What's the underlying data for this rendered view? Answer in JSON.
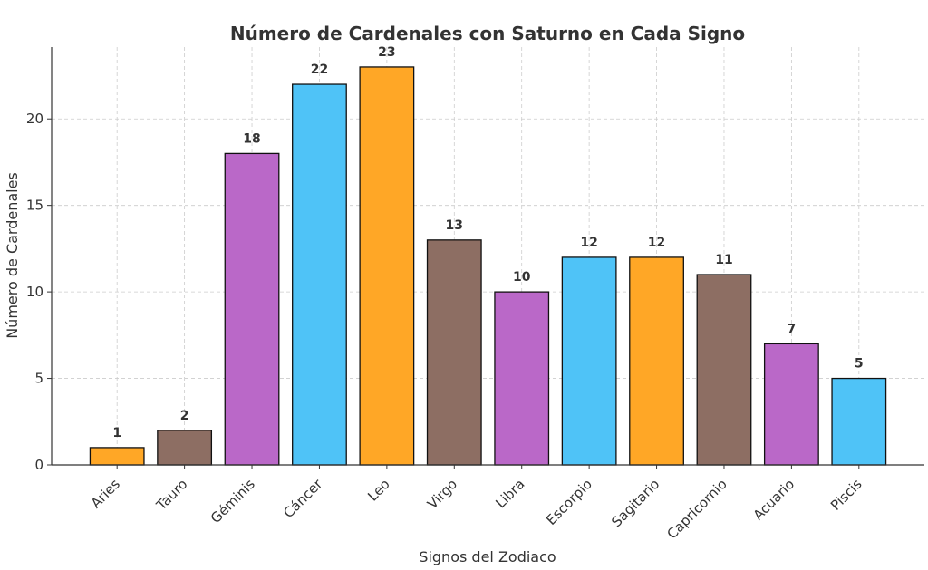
{
  "chart_data": {
    "type": "bar",
    "title": "Número de Cardenales con Saturno en Cada Signo",
    "x_label": "Signos del Zodiaco",
    "y_label": "Número de Cardenales",
    "categories": [
      "Aries",
      "Tauro",
      "Géminis",
      "Cáncer",
      "Leo",
      "Virgo",
      "Libra",
      "Escorpio",
      "Sagitario",
      "Capricornio",
      "Acuario",
      "Piscis"
    ],
    "values": [
      1,
      2,
      18,
      22,
      23,
      13,
      10,
      12,
      12,
      11,
      7,
      5
    ],
    "colors": [
      "#ffa726",
      "#8d6e63",
      "#ba68c8",
      "#4fc3f7",
      "#ffa726",
      "#8d6e63",
      "#ba68c8",
      "#4fc3f7",
      "#ffa726",
      "#8d6e63",
      "#ba68c8",
      "#4fc3f7"
    ],
    "ylim": [
      0,
      24.15
    ],
    "yticks": [
      0,
      5,
      10,
      15,
      20
    ],
    "grid": true
  }
}
